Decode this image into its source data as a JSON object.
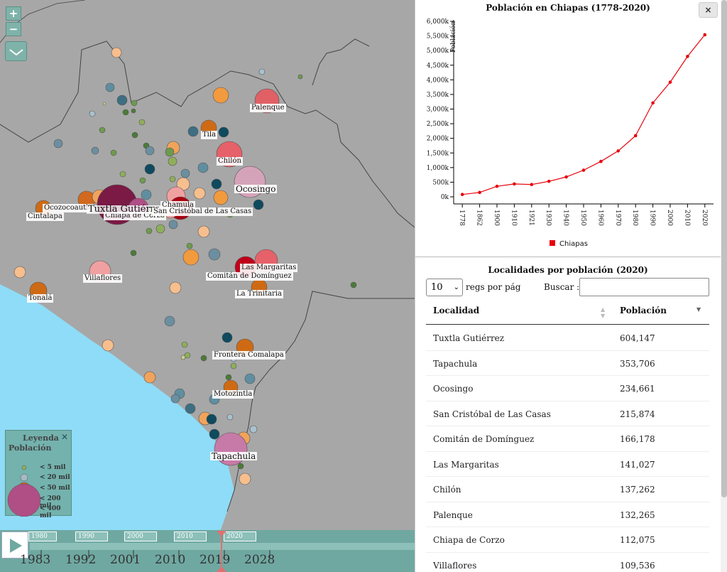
{
  "map": {
    "zoom_in": "+",
    "zoom_out": "−",
    "colors": {
      "land": "#a7a7a7",
      "sea": "#8edcf7",
      "border": "#444444"
    },
    "cities": [
      {
        "name": "Palenque",
        "size": "md"
      },
      {
        "name": "Tila",
        "size": "sm"
      },
      {
        "name": "Chilón",
        "size": "sm"
      },
      {
        "name": "Ocosingo",
        "size": "md"
      },
      {
        "name": "Ocozocoautla",
        "size": "sm"
      },
      {
        "name": "Cintalapa",
        "size": "sm"
      },
      {
        "name": "Tuxtla Gutiérrez",
        "size": "lg"
      },
      {
        "name": "Chiapa de Corzo",
        "size": "sm"
      },
      {
        "name": "Chamula",
        "size": "sm"
      },
      {
        "name": "San Cristóbal de Las Casas",
        "size": "md"
      },
      {
        "name": "Villaflores",
        "size": "sm"
      },
      {
        "name": "Las Margaritas",
        "size": "sm"
      },
      {
        "name": "Comitán de Domínguez",
        "size": "sm"
      },
      {
        "name": "La Trinitaria",
        "size": "sm"
      },
      {
        "name": "Tonalá",
        "size": "sm"
      },
      {
        "name": "Frontera Comalapa",
        "size": "sm"
      },
      {
        "name": "Motozintla",
        "size": "sm"
      },
      {
        "name": "Tapachula",
        "size": "md"
      }
    ]
  },
  "legend": {
    "title1": "Leyenda",
    "title2": "Población",
    "close": "✕",
    "items": [
      "< 5 mil",
      "< 20 mil",
      "< 50 mil",
      "< 200 mil",
      "< 400 mil"
    ],
    "colors": [
      "#8fae5c",
      "#6b8fa0",
      "#d2691e",
      "#c0001a",
      "#a04b7a"
    ]
  },
  "timeline": {
    "decades": [
      "1980",
      "1990",
      "2000",
      "2010",
      "2020"
    ],
    "years": [
      "1983",
      "1992",
      "2001",
      "2010",
      "2019",
      "2028"
    ],
    "current_value": 2020
  },
  "chart": {
    "close": "×"
  },
  "chart_data": {
    "type": "line",
    "title": "Población en Chiapas (1778-2020)",
    "ylabel": "Población",
    "xlabel": "",
    "x": [
      "1778",
      "1862",
      "1900",
      "1910",
      "1921",
      "1930",
      "1940",
      "1950",
      "1960",
      "1970",
      "1980",
      "1990",
      "2000",
      "2010",
      "2020"
    ],
    "series": [
      {
        "name": "Chiapas",
        "values": [
          80,
          150,
          360,
          440,
          420,
          530,
          680,
          910,
          1210,
          1570,
          2090,
          3210,
          3920,
          4800,
          5540
        ]
      }
    ],
    "y_ticks": [
      "0k",
      "500k",
      "1,000k",
      "1,500k",
      "2,000k",
      "2,500k",
      "3,000k",
      "3,500k",
      "4,000k",
      "4,500k",
      "5,000k",
      "5,500k",
      "6,000k"
    ],
    "ylim": [
      0,
      6000
    ],
    "color": "#e8000b",
    "legend": "bottom"
  },
  "table": {
    "title": "Localidades por población (2020)",
    "rows_per_page": "10",
    "rows_label": "regs por pág",
    "search_label": "Buscar :",
    "search_value": "",
    "headers": [
      "Localidad",
      "Población"
    ],
    "rows": [
      [
        "Tuxtla Gutiérrez",
        "604,147"
      ],
      [
        "Tapachula",
        "353,706"
      ],
      [
        "Ocosingo",
        "234,661"
      ],
      [
        "San Cristóbal de Las Casas",
        "215,874"
      ],
      [
        "Comitán de Domínguez",
        "166,178"
      ],
      [
        "Las Margaritas",
        "141,027"
      ],
      [
        "Chilón",
        "137,262"
      ],
      [
        "Palenque",
        "132,265"
      ],
      [
        "Chiapa de Corzo",
        "112,075"
      ],
      [
        "Villaflores",
        "109,536"
      ]
    ]
  }
}
